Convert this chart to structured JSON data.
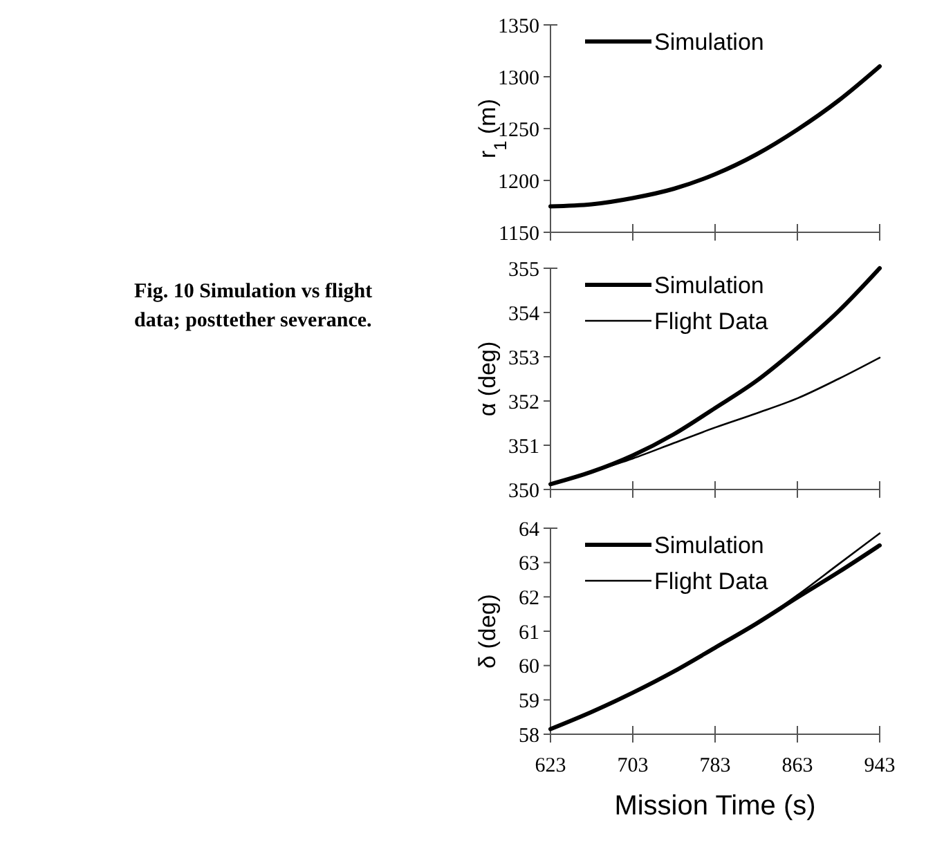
{
  "chart_data": [
    {
      "type": "line",
      "x": [
        623,
        663,
        703,
        743,
        783,
        823,
        863,
        903,
        943
      ],
      "xlim": [
        623,
        943
      ],
      "xticks": [
        623,
        703,
        783,
        863,
        943
      ],
      "ylim": [
        1150,
        1350
      ],
      "yticks": [
        1150,
        1200,
        1250,
        1300,
        1350
      ],
      "ylabel": "r$_{1}$ (m)",
      "tick_labels": "y",
      "legend": "top left",
      "series": [
        {
          "name": "Simulation",
          "color": "#000000",
          "values": [
            1175,
            1177,
            1183,
            1192,
            1206,
            1225,
            1249,
            1277,
            1310
          ]
        }
      ],
      "annotations": [
        "Fig. 10    Simulation vs flight data; posttether severance."
      ]
    },
    {
      "type": "line",
      "x": [
        623,
        663,
        703,
        743,
        783,
        823,
        863,
        903,
        943
      ],
      "xlim": [
        623,
        943
      ],
      "xticks": [
        623,
        703,
        783,
        863,
        943
      ],
      "ylim": [
        350,
        355
      ],
      "yticks": [
        350,
        351,
        352,
        353,
        354,
        355
      ],
      "ylabel": "α (deg)",
      "tick_labels": "y",
      "legend": "top left",
      "series": [
        {
          "name": "Simulation",
          "color": "#000000",
          "values": [
            350.12,
            350.4,
            350.77,
            351.25,
            351.84,
            352.45,
            353.2,
            354.03,
            355
          ]
        },
        {
          "name": "Flight Data",
          "color": "#000000",
          "values": [
            350.12,
            350.4,
            350.7,
            351.05,
            351.4,
            351.72,
            352.06,
            352.5,
            352.98
          ]
        }
      ]
    },
    {
      "type": "line",
      "x": [
        623,
        663,
        703,
        743,
        783,
        823,
        863,
        903,
        943
      ],
      "xlim": [
        623,
        943
      ],
      "xticks": [
        623,
        703,
        783,
        863,
        943
      ],
      "ylim": [
        58,
        64
      ],
      "yticks": [
        58,
        59,
        60,
        61,
        62,
        63,
        64
      ],
      "ylabel": "δ (deg)",
      "xlabel": "Mission Time (s)",
      "legend": "top left",
      "series": [
        {
          "name": "Simulation",
          "color": "#000000",
          "values": [
            58.15,
            58.65,
            59.21,
            59.83,
            60.52,
            61.22,
            61.98,
            62.72,
            63.5
          ]
        },
        {
          "name": "Flight Data",
          "color": "#000000",
          "values": [
            58.15,
            58.65,
            59.21,
            59.83,
            60.52,
            61.22,
            62.05,
            62.95,
            63.85
          ]
        }
      ]
    }
  ]
}
